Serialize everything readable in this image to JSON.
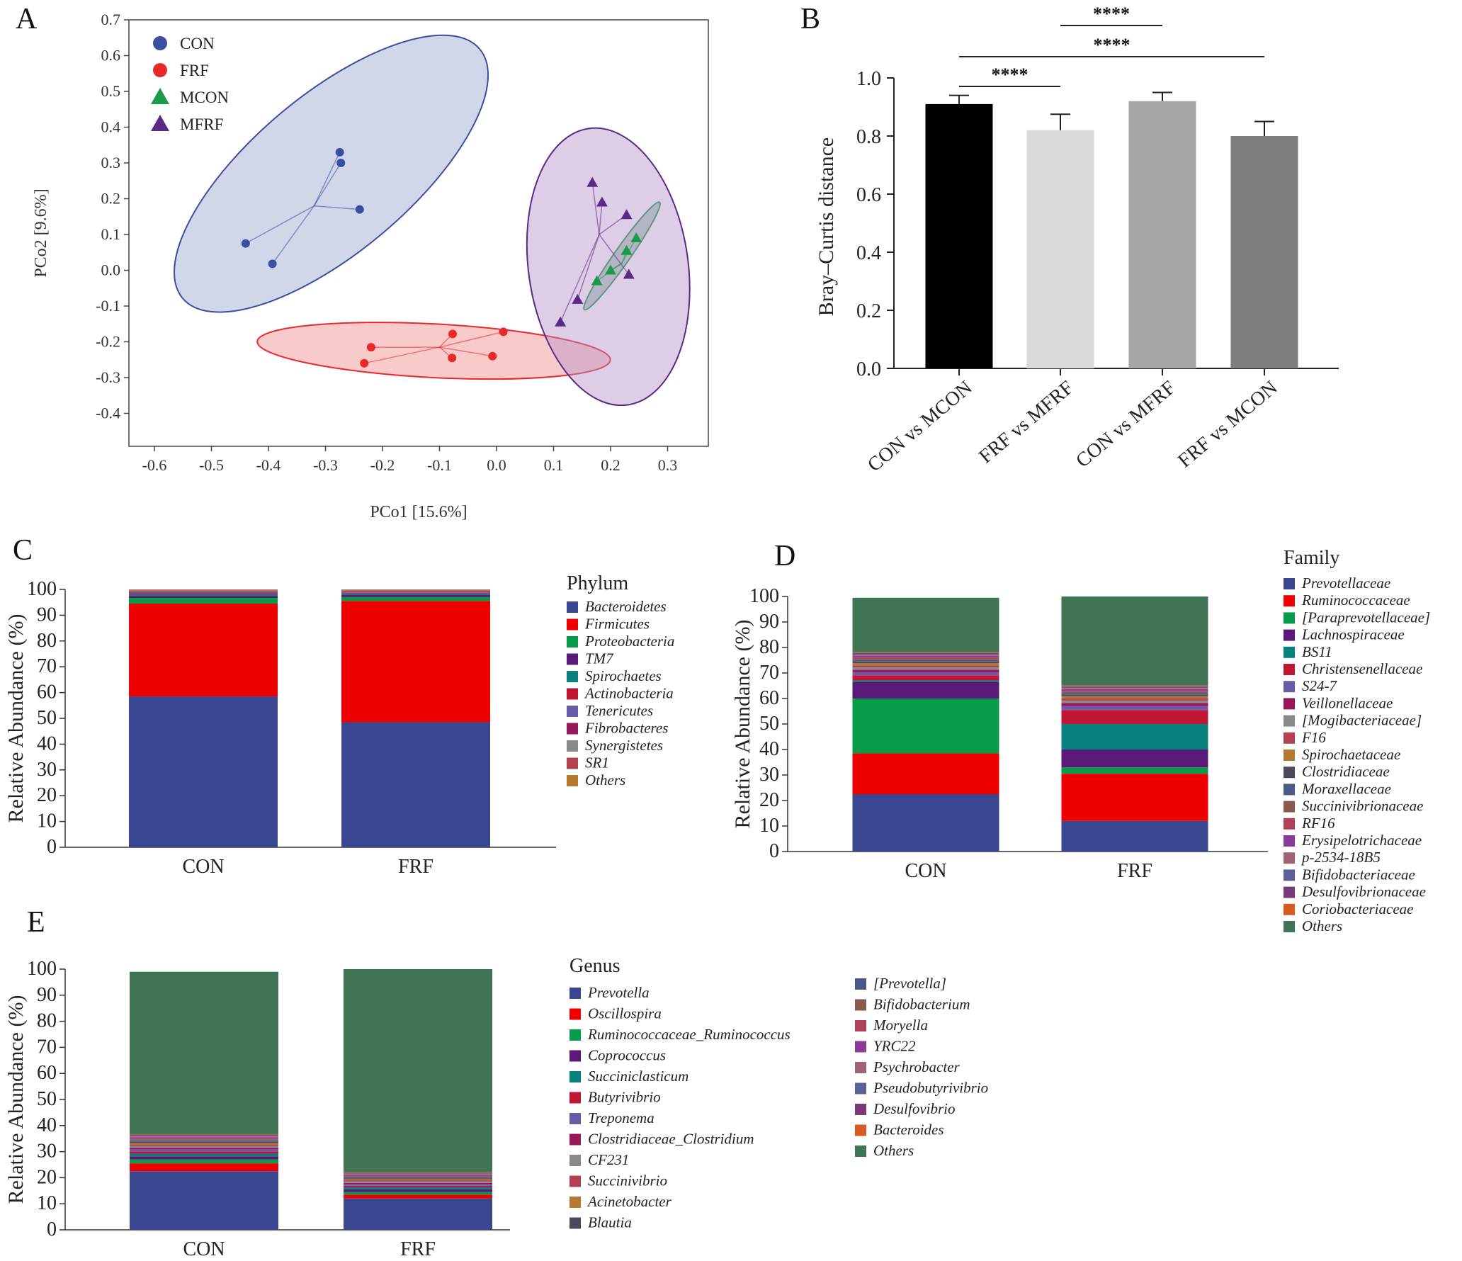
{
  "panels": {
    "A": "A",
    "B": "B",
    "C": "C",
    "D": "D",
    "E": "E"
  },
  "chart_data": [
    {
      "id": "A",
      "type": "scatter",
      "title": "",
      "xlabel": "PCo1 [15.6%]",
      "ylabel": "PCo2 [9.6%]",
      "xlim": [
        -0.65,
        0.35
      ],
      "ylim": [
        -0.5,
        0.72
      ],
      "xticks": [
        -0.6,
        -0.5,
        -0.4,
        -0.3,
        -0.2,
        -0.1,
        0.0,
        0.1,
        0.2,
        0.3
      ],
      "xtick_labels": [
        "-0.6",
        "-0.5",
        "-0.4",
        "-0.3",
        "-0.2",
        "-0.1",
        "0.0",
        "0.1",
        "0.2",
        "0.3"
      ],
      "yticks": [
        0.7,
        0.6,
        0.5,
        0.4,
        0.3,
        0.2,
        0.1,
        0.0,
        -0.1,
        -0.2,
        -0.3,
        -0.4
      ],
      "ytick_labels": [
        "0.7",
        "0.6",
        "0.5",
        "0.4",
        "0.3",
        "0.2",
        "0.1",
        "0.0",
        "-0.1",
        "-0.2",
        "-0.3",
        "-0.4"
      ],
      "legend_position": "top-left",
      "series": [
        {
          "name": "CON",
          "color": "#3b4fa0",
          "marker": "circle",
          "fill": "#9aa3cf",
          "centroid": [
            -0.32,
            0.18
          ],
          "ellipse": {
            "cx": -0.29,
            "cy": 0.27,
            "rx": 0.34,
            "ry": 0.22,
            "angle_deg": -40
          },
          "points": [
            [
              -0.275,
              0.33
            ],
            [
              -0.273,
              0.3
            ],
            [
              -0.24,
              0.17
            ],
            [
              -0.44,
              0.075
            ],
            [
              -0.393,
              0.018
            ]
          ]
        },
        {
          "name": "FRF",
          "color": "#e8282b",
          "marker": "circle",
          "fill": "#f18a8a",
          "centroid": [
            -0.1,
            -0.215
          ],
          "ellipse": {
            "cx": -0.11,
            "cy": -0.225,
            "rx": 0.31,
            "ry": 0.075,
            "angle_deg": 3
          },
          "points": [
            [
              -0.22,
              -0.215
            ],
            [
              -0.232,
              -0.26
            ],
            [
              -0.077,
              -0.178
            ],
            [
              -0.078,
              -0.245
            ],
            [
              0.012,
              -0.172
            ],
            [
              -0.007,
              -0.24
            ]
          ]
        },
        {
          "name": "MCON",
          "color": "#1a9a4a",
          "marker": "triangle",
          "fill": "#5a9a76",
          "centroid": [
            0.22,
            0.02
          ],
          "ellipse": {
            "cx": 0.22,
            "cy": 0.04,
            "rx": 0.115,
            "ry": 0.022,
            "angle_deg": -55
          },
          "points": [
            [
              0.245,
              0.09
            ],
            [
              0.228,
              0.055
            ],
            [
              0.2,
              0.0
            ],
            [
              0.176,
              -0.03
            ]
          ]
        },
        {
          "name": "MFRF",
          "color": "#5b2a86",
          "marker": "triangle",
          "fill": "#b690c8",
          "centroid": [
            0.18,
            0.1
          ],
          "ellipse": {
            "cx": 0.196,
            "cy": 0.01,
            "rx": 0.14,
            "ry": 0.39,
            "angle_deg": -8
          },
          "points": [
            [
              0.168,
              0.245
            ],
            [
              0.185,
              0.19
            ],
            [
              0.228,
              0.155
            ],
            [
              0.232,
              -0.012
            ],
            [
              0.142,
              -0.082
            ],
            [
              0.112,
              -0.145
            ]
          ]
        }
      ]
    },
    {
      "id": "B",
      "type": "bar",
      "ylabel": "Bray–Curtis distance",
      "ylim": [
        0,
        1.0
      ],
      "yticks": [
        0.0,
        0.2,
        0.4,
        0.6,
        0.8,
        1.0
      ],
      "ytick_labels": [
        "0.0",
        "0.2",
        "0.4",
        "0.6",
        "0.8",
        "1.0"
      ],
      "categories": [
        "CON vs MCON",
        "FRF vs MFRF",
        "CON vs MFRF",
        "FRF vs MCON"
      ],
      "values": [
        0.91,
        0.82,
        0.92,
        0.8
      ],
      "errors": [
        0.03,
        0.055,
        0.03,
        0.05
      ],
      "colors": [
        "#000000",
        "#d9d9d9",
        "#a6a6a8",
        "#7e7e7e"
      ],
      "significance": [
        {
          "from": 0,
          "to": 1,
          "label": "****"
        },
        {
          "from": 1,
          "to": 2,
          "label": "****"
        },
        {
          "from": 0,
          "to": 3,
          "label": "****"
        }
      ]
    },
    {
      "id": "C",
      "type": "bar",
      "stacked": true,
      "ylabel": "Relative Abundance (%)",
      "ylim": [
        0,
        100
      ],
      "yticks": [
        0,
        10,
        20,
        30,
        40,
        50,
        60,
        70,
        80,
        90,
        100
      ],
      "categories": [
        "CON",
        "FRF"
      ],
      "legend_title": "Phylum",
      "legend_position": "right",
      "series": [
        {
          "name": "Bacteroidetes",
          "color": "#3a4690",
          "values": [
            58.5,
            48.5
          ]
        },
        {
          "name": "Firmicutes",
          "color": "#ee0000",
          "values": [
            36.0,
            47.0
          ]
        },
        {
          "name": "Proteobacteria",
          "color": "#079a49",
          "values": [
            2.2,
            1.5
          ]
        },
        {
          "name": "TM7",
          "color": "#5a1878",
          "values": [
            0.8,
            1.0
          ]
        },
        {
          "name": "Spirochaetes",
          "color": "#08807e",
          "values": [
            0.6,
            0.4
          ]
        },
        {
          "name": "Actinobacteria",
          "color": "#c01535",
          "values": [
            0.4,
            0.3
          ]
        },
        {
          "name": "Tenericutes",
          "color": "#6a5aa8",
          "values": [
            0.4,
            0.3
          ]
        },
        {
          "name": "Fibrobacteres",
          "color": "#97185a",
          "values": [
            0.3,
            0.3
          ]
        },
        {
          "name": "Synergistetes",
          "color": "#8a8a8a",
          "values": [
            0.3,
            0.2
          ]
        },
        {
          "name": "SR1",
          "color": "#b14050",
          "values": [
            0.2,
            0.2
          ]
        },
        {
          "name": "Others",
          "color": "#b57a2e",
          "values": [
            0.3,
            0.3
          ]
        }
      ]
    },
    {
      "id": "D",
      "type": "bar",
      "stacked": true,
      "ylabel": "Relative Abundance (%)",
      "ylim": [
        0,
        100
      ],
      "yticks": [
        0,
        10,
        20,
        30,
        40,
        50,
        60,
        70,
        80,
        90,
        100
      ],
      "categories": [
        "CON",
        "FRF"
      ],
      "legend_title": "Family",
      "legend_position": "right",
      "series": [
        {
          "name": "Prevotellaceae",
          "color": "#3a4690",
          "values": [
            22.5,
            12.0
          ]
        },
        {
          "name": "Ruminococcaceae",
          "color": "#ee0000",
          "values": [
            16.0,
            18.5
          ]
        },
        {
          "name": "[Paraprevotellaceae]",
          "color": "#079a49",
          "values": [
            21.5,
            2.5
          ]
        },
        {
          "name": "Lachnospiraceae",
          "color": "#5a1878",
          "values": [
            6.5,
            7.0
          ]
        },
        {
          "name": "BS11",
          "color": "#08807e",
          "values": [
            0.6,
            10.0
          ]
        },
        {
          "name": "Christensenellaceae",
          "color": "#c01535",
          "values": [
            2.0,
            5.5
          ]
        },
        {
          "name": "S24-7",
          "color": "#6a5aa8",
          "values": [
            1.2,
            1.5
          ]
        },
        {
          "name": "Veillonellaceae",
          "color": "#97185a",
          "values": [
            1.0,
            1.2
          ]
        },
        {
          "name": "[Mogibacteriaceae]",
          "color": "#8a8a8a",
          "values": [
            0.9,
            1.0
          ]
        },
        {
          "name": "F16",
          "color": "#b14050",
          "values": [
            0.8,
            0.9
          ]
        },
        {
          "name": "Spirochaetaceae",
          "color": "#b57a2e",
          "values": [
            0.8,
            0.8
          ]
        },
        {
          "name": "Clostridiaceae",
          "color": "#4a4a5a",
          "values": [
            0.7,
            0.7
          ]
        },
        {
          "name": "Moraxellaceae",
          "color": "#4a5a88",
          "values": [
            0.6,
            0.6
          ]
        },
        {
          "name": "Succinivibrionaceae",
          "color": "#8a5a50",
          "values": [
            0.6,
            0.5
          ]
        },
        {
          "name": "RF16",
          "color": "#b0405a",
          "values": [
            0.5,
            0.5
          ]
        },
        {
          "name": "Erysipelotrichaceae",
          "color": "#8a3a98",
          "values": [
            0.5,
            0.5
          ]
        },
        {
          "name": "p-2534-18B5",
          "color": "#a06078",
          "values": [
            0.4,
            0.4
          ]
        },
        {
          "name": "Bifidobacteriaceae",
          "color": "#5a6098",
          "values": [
            0.4,
            0.4
          ]
        },
        {
          "name": "Desulfovibrionaceae",
          "color": "#7a3a7a",
          "values": [
            0.3,
            0.3
          ]
        },
        {
          "name": "Coriobacteriaceae",
          "color": "#d85a20",
          "values": [
            0.3,
            0.3
          ]
        },
        {
          "name": "Others",
          "color": "#3f7555",
          "values": [
            21.4,
            34.9
          ]
        }
      ]
    },
    {
      "id": "E",
      "type": "bar",
      "stacked": true,
      "ylabel": "Relative Abundance (%)",
      "ylim": [
        0,
        100
      ],
      "yticks": [
        0,
        10,
        20,
        30,
        40,
        50,
        60,
        70,
        80,
        90,
        100
      ],
      "categories": [
        "CON",
        "FRF"
      ],
      "legend_title": "Genus",
      "legend_position": "right",
      "series": [
        {
          "name": "Prevotella",
          "color": "#3a4690",
          "values": [
            22.5,
            12.0
          ]
        },
        {
          "name": "Oscillospira",
          "color": "#ee0000",
          "values": [
            3.0,
            1.5
          ]
        },
        {
          "name": "Ruminococcaceae_Ruminococcus",
          "color": "#079a49",
          "values": [
            1.5,
            1.0
          ]
        },
        {
          "name": "Coprococcus",
          "color": "#5a1878",
          "values": [
            1.2,
            1.0
          ]
        },
        {
          "name": "Succiniclasticum",
          "color": "#08807e",
          "values": [
            1.0,
            0.8
          ]
        },
        {
          "name": "Butyrivibrio",
          "color": "#c01535",
          "values": [
            0.8,
            0.6
          ]
        },
        {
          "name": "Treponema",
          "color": "#6a5aa8",
          "values": [
            0.8,
            0.6
          ]
        },
        {
          "name": "Clostridiaceae_Clostridium",
          "color": "#97185a",
          "values": [
            0.7,
            0.5
          ]
        },
        {
          "name": "CF231",
          "color": "#8a8a8a",
          "values": [
            0.7,
            0.5
          ]
        },
        {
          "name": "Succinivibrio",
          "color": "#b14050",
          "values": [
            0.6,
            0.5
          ]
        },
        {
          "name": "Acinetobacter",
          "color": "#b57a2e",
          "values": [
            0.5,
            0.4
          ]
        },
        {
          "name": "Blautia",
          "color": "#4a4a5a",
          "values": [
            0.5,
            0.4
          ]
        },
        {
          "name": "[Prevotella]",
          "color": "#4a5a88",
          "values": [
            0.5,
            0.4
          ]
        },
        {
          "name": "Bifidobacterium",
          "color": "#8a5a50",
          "values": [
            0.4,
            0.3
          ]
        },
        {
          "name": "Moryella",
          "color": "#b0405a",
          "values": [
            0.4,
            0.3
          ]
        },
        {
          "name": "YRC22",
          "color": "#8a3a98",
          "values": [
            0.4,
            0.3
          ]
        },
        {
          "name": "Psychrobacter",
          "color": "#a06078",
          "values": [
            0.3,
            0.3
          ]
        },
        {
          "name": "Pseudobutyrivibrio",
          "color": "#5a6098",
          "values": [
            0.3,
            0.3
          ]
        },
        {
          "name": "Desulfovibrio",
          "color": "#7a3a7a",
          "values": [
            0.3,
            0.2
          ]
        },
        {
          "name": "Bacteroides",
          "color": "#d85a20",
          "values": [
            0.3,
            0.2
          ]
        },
        {
          "name": "Others",
          "color": "#3f7555",
          "values": [
            62.3,
            77.9
          ]
        }
      ]
    }
  ]
}
